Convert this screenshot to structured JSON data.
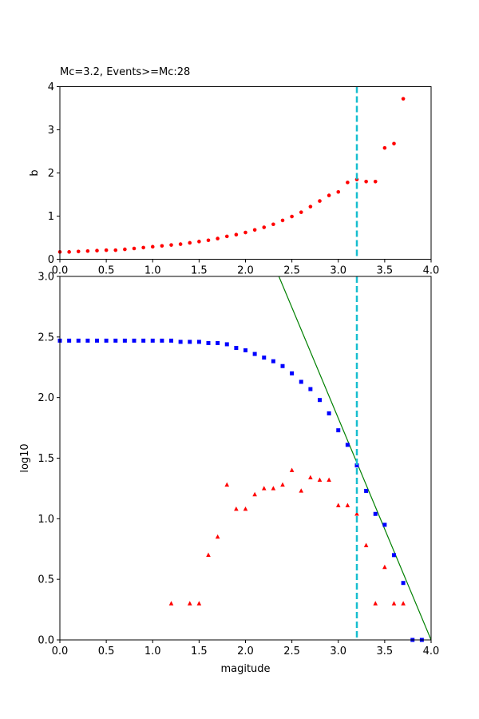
{
  "title": "Mc=3.2, Events>=Mc:28",
  "colors": {
    "b_points": "#ff0000",
    "cumulative": "#0000ff",
    "noncumulative": "#ff0000",
    "fit_line": "#008000",
    "mc_line": "#17becf"
  },
  "chart_data": [
    {
      "type": "scatter",
      "title": "Mc=3.2, Events>=Mc:28",
      "xlabel": "",
      "ylabel": "b",
      "xlim": [
        0,
        4
      ],
      "ylim": [
        0,
        4
      ],
      "xticks": [
        "0.0",
        "0.5",
        "1.0",
        "1.5",
        "2.0",
        "2.5",
        "3.0",
        "3.5",
        "4.0"
      ],
      "yticks": [
        "0",
        "1",
        "2",
        "3",
        "4"
      ],
      "grid": false,
      "series": [
        {
          "marker": "circle",
          "x": [
            0.0,
            0.1,
            0.2,
            0.3,
            0.4,
            0.5,
            0.6,
            0.7,
            0.8,
            0.9,
            1.0,
            1.1,
            1.2,
            1.3,
            1.4,
            1.5,
            1.6,
            1.7,
            1.8,
            1.9,
            2.0,
            2.1,
            2.2,
            2.3,
            2.4,
            2.5,
            2.6,
            2.7,
            2.8,
            2.9,
            3.0,
            3.1,
            3.2,
            3.3,
            3.4,
            3.5,
            3.6,
            3.7
          ],
          "y": [
            0.17,
            0.17,
            0.18,
            0.19,
            0.2,
            0.21,
            0.21,
            0.23,
            0.25,
            0.27,
            0.29,
            0.31,
            0.33,
            0.35,
            0.38,
            0.41,
            0.44,
            0.48,
            0.53,
            0.57,
            0.62,
            0.68,
            0.74,
            0.81,
            0.9,
            0.99,
            1.09,
            1.22,
            1.35,
            1.48,
            1.56,
            1.78,
            1.85,
            1.8,
            1.8,
            2.58,
            2.68,
            3.72
          ]
        }
      ],
      "mc_line_x": 3.2
    },
    {
      "type": "scatter",
      "xlabel": "magitude",
      "ylabel": "log10",
      "xlim": [
        0,
        4
      ],
      "ylim": [
        0,
        3
      ],
      "xticks": [
        "0.0",
        "0.5",
        "1.0",
        "1.5",
        "2.0",
        "2.5",
        "3.0",
        "3.5",
        "4.0"
      ],
      "yticks": [
        "0.0",
        "0.5",
        "1.0",
        "1.5",
        "2.0",
        "2.5",
        "3.0"
      ],
      "grid": false,
      "series": [
        {
          "marker": "square",
          "x": [
            0.0,
            0.1,
            0.2,
            0.3,
            0.4,
            0.5,
            0.6,
            0.7,
            0.8,
            0.9,
            1.0,
            1.1,
            1.2,
            1.3,
            1.4,
            1.5,
            1.6,
            1.7,
            1.8,
            1.9,
            2.0,
            2.1,
            2.2,
            2.3,
            2.4,
            2.5,
            2.6,
            2.7,
            2.8,
            2.9,
            3.0,
            3.1,
            3.2,
            3.3,
            3.4,
            3.5,
            3.6,
            3.7,
            3.8,
            3.9
          ],
          "y": [
            2.47,
            2.47,
            2.47,
            2.47,
            2.47,
            2.47,
            2.47,
            2.47,
            2.47,
            2.47,
            2.47,
            2.47,
            2.47,
            2.46,
            2.46,
            2.46,
            2.45,
            2.45,
            2.44,
            2.41,
            2.39,
            2.36,
            2.33,
            2.3,
            2.26,
            2.2,
            2.13,
            2.07,
            1.98,
            1.87,
            1.73,
            1.61,
            1.44,
            1.23,
            1.04,
            0.95,
            0.7,
            0.47,
            0.0,
            0.0
          ]
        },
        {
          "marker": "triangle",
          "x": [
            1.2,
            1.4,
            1.5,
            1.6,
            1.7,
            1.8,
            1.9,
            2.0,
            2.1,
            2.2,
            2.3,
            2.4,
            2.5,
            2.6,
            2.7,
            2.8,
            2.9,
            3.0,
            3.1,
            3.2,
            3.3,
            3.4,
            3.5,
            3.6,
            3.7
          ],
          "y": [
            0.3,
            0.3,
            0.3,
            0.7,
            0.85,
            1.28,
            1.08,
            1.08,
            1.2,
            1.25,
            1.25,
            1.28,
            1.4,
            1.23,
            1.34,
            1.32,
            1.32,
            1.11,
            1.11,
            1.04,
            0.78,
            0.3,
            0.6,
            0.3,
            0.3
          ]
        },
        {
          "type": "line",
          "x": [
            2.36,
            4.0
          ],
          "y": [
            3.0,
            0.0
          ]
        }
      ],
      "mc_line_x": 3.2
    }
  ]
}
